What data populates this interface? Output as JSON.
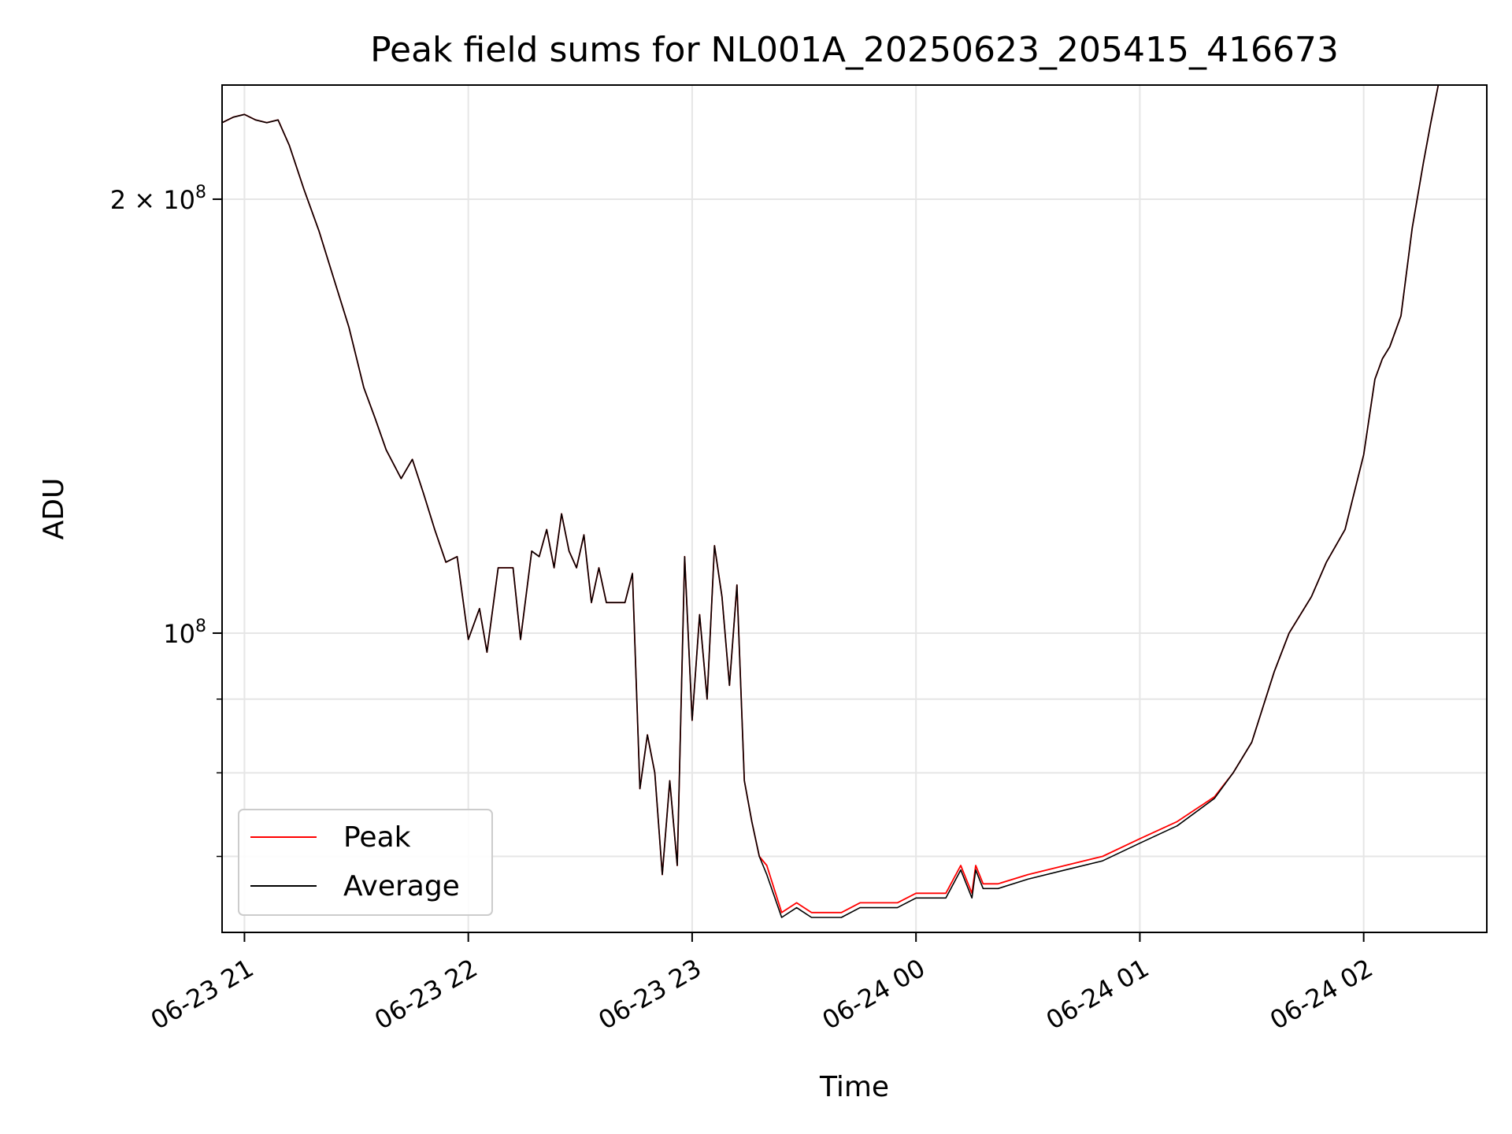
{
  "chart_data": {
    "type": "line",
    "title": "Peak field sums for NL001A_20250623_205415_416673",
    "xlabel": "Time",
    "ylabel": "ADU",
    "y_scale": "log",
    "ylim": [
      62000000,
      240000000
    ],
    "xlim": [
      "2025-06-23 20:54",
      "2025-06-24 02:33"
    ],
    "grid": true,
    "legend_position": "lower-left",
    "x_ticks": [
      {
        "value": "2025-06-23 21:00",
        "label": "06-23 21"
      },
      {
        "value": "2025-06-23 22:00",
        "label": "06-23 22"
      },
      {
        "value": "2025-06-23 23:00",
        "label": "06-23 23"
      },
      {
        "value": "2025-06-24 00:00",
        "label": "06-24 00"
      },
      {
        "value": "2025-06-24 01:00",
        "label": "06-24 01"
      },
      {
        "value": "2025-06-24 02:00",
        "label": "06-24 02"
      }
    ],
    "y_major_ticks": [
      {
        "value": 100000000,
        "base": "10",
        "exp": "8",
        "coef": ""
      },
      {
        "value": 200000000,
        "base": "10",
        "exp": "8",
        "coef": "2 × "
      }
    ],
    "y_minor_ticks": [
      70000000,
      80000000,
      90000000
    ],
    "x": [
      "2025-06-23 20:54",
      "2025-06-23 20:57",
      "2025-06-23 21:00",
      "2025-06-23 21:03",
      "2025-06-23 21:06",
      "2025-06-23 21:09",
      "2025-06-23 21:12",
      "2025-06-23 21:16",
      "2025-06-23 21:20",
      "2025-06-23 21:24",
      "2025-06-23 21:28",
      "2025-06-23 21:32",
      "2025-06-23 21:35",
      "2025-06-23 21:38",
      "2025-06-23 21:42",
      "2025-06-23 21:45",
      "2025-06-23 21:48",
      "2025-06-23 21:51",
      "2025-06-23 21:54",
      "2025-06-23 21:57",
      "2025-06-23 22:00",
      "2025-06-23 22:03",
      "2025-06-23 22:05",
      "2025-06-23 22:08",
      "2025-06-23 22:12",
      "2025-06-23 22:14",
      "2025-06-23 22:17",
      "2025-06-23 22:19",
      "2025-06-23 22:21",
      "2025-06-23 22:23",
      "2025-06-23 22:25",
      "2025-06-23 22:27",
      "2025-06-23 22:29",
      "2025-06-23 22:31",
      "2025-06-23 22:33",
      "2025-06-23 22:35",
      "2025-06-23 22:37",
      "2025-06-23 22:40",
      "2025-06-23 22:42",
      "2025-06-23 22:44",
      "2025-06-23 22:46",
      "2025-06-23 22:48",
      "2025-06-23 22:50",
      "2025-06-23 22:52",
      "2025-06-23 22:54",
      "2025-06-23 22:56",
      "2025-06-23 22:58",
      "2025-06-23 23:00",
      "2025-06-23 23:02",
      "2025-06-23 23:04",
      "2025-06-23 23:06",
      "2025-06-23 23:08",
      "2025-06-23 23:10",
      "2025-06-23 23:12",
      "2025-06-23 23:14",
      "2025-06-23 23:16",
      "2025-06-23 23:18",
      "2025-06-23 23:20",
      "2025-06-23 23:24",
      "2025-06-23 23:28",
      "2025-06-23 23:32",
      "2025-06-23 23:36",
      "2025-06-23 23:40",
      "2025-06-23 23:45",
      "2025-06-23 23:50",
      "2025-06-23 23:55",
      "2025-06-24 00:00",
      "2025-06-24 00:04",
      "2025-06-24 00:08",
      "2025-06-24 00:12",
      "2025-06-24 00:15",
      "2025-06-24 00:16",
      "2025-06-24 00:18",
      "2025-06-24 00:22",
      "2025-06-24 00:30",
      "2025-06-24 00:40",
      "2025-06-24 00:50",
      "2025-06-24 01:00",
      "2025-06-24 01:10",
      "2025-06-24 01:20",
      "2025-06-24 01:25",
      "2025-06-24 01:30",
      "2025-06-24 01:36",
      "2025-06-24 01:40",
      "2025-06-24 01:46",
      "2025-06-24 01:50",
      "2025-06-24 01:55",
      "2025-06-24 02:00",
      "2025-06-24 02:03",
      "2025-06-24 02:05",
      "2025-06-24 02:07",
      "2025-06-24 02:10",
      "2025-06-24 02:13",
      "2025-06-24 02:16",
      "2025-06-24 02:18",
      "2025-06-24 02:20"
    ],
    "series": [
      {
        "name": "Peak",
        "color": "#ff0000",
        "values": [
          226,
          228,
          229,
          227,
          226,
          227,
          218,
          203,
          190,
          176,
          163,
          148,
          141,
          134,
          128,
          132,
          125,
          118,
          112,
          113,
          99,
          104,
          97,
          111,
          111,
          99,
          114,
          113,
          118,
          111,
          121,
          114,
          111,
          117,
          105,
          111,
          105,
          105,
          105,
          110,
          78,
          85,
          80,
          68,
          79,
          69,
          113,
          87,
          103,
          90,
          115,
          106,
          92,
          108,
          79,
          74,
          70,
          69,
          64,
          65,
          64,
          64,
          64,
          65,
          65,
          65,
          66,
          66,
          66,
          69,
          66,
          69,
          67,
          67,
          68,
          69,
          70,
          72,
          74,
          77,
          80,
          84,
          94,
          100,
          106,
          112,
          118,
          133,
          150,
          155,
          158,
          166,
          191,
          212,
          226,
          240
        ]
      },
      {
        "name": "Average",
        "color": "#000000",
        "values": [
          226,
          228,
          229,
          227,
          226,
          227,
          218,
          203,
          190,
          176,
          163,
          148,
          141,
          134,
          128,
          132,
          125,
          118,
          112,
          113,
          99,
          104,
          97,
          111,
          111,
          99,
          114,
          113,
          118,
          111,
          121,
          114,
          111,
          117,
          105,
          111,
          105,
          105,
          105,
          110,
          78,
          85,
          80,
          68,
          79,
          69,
          113,
          87,
          103,
          90,
          115,
          106,
          92,
          108,
          79,
          74,
          70,
          68,
          63.5,
          64.5,
          63.5,
          63.5,
          63.5,
          64.5,
          64.5,
          64.5,
          65.5,
          65.5,
          65.5,
          68.5,
          65.5,
          68.5,
          66.5,
          66.5,
          67.5,
          68.5,
          69.5,
          71.5,
          73.5,
          76.8,
          80,
          84,
          94,
          100,
          106,
          112,
          118,
          133,
          150,
          155,
          158,
          166,
          191,
          212,
          226,
          240
        ]
      }
    ]
  }
}
